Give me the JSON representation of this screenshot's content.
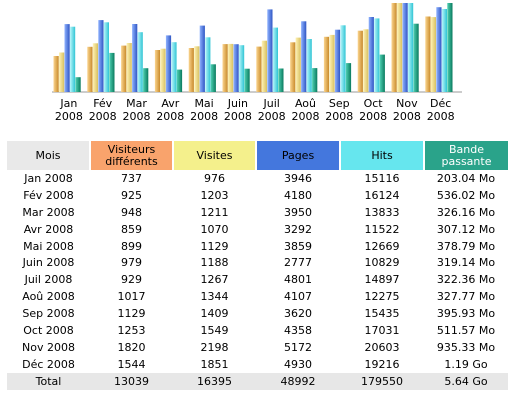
{
  "chart_data": {
    "type": "bar",
    "categories": [
      "Jan 2008",
      "Fév 2008",
      "Mar 2008",
      "Avr 2008",
      "Mai 2008",
      "Juin 2008",
      "Juil 2008",
      "Aoû 2008",
      "Sep 2008",
      "Oct 2008",
      "Nov 2008",
      "Déc 2008"
    ],
    "category_lines": [
      [
        "Jan",
        "2008"
      ],
      [
        "Fév",
        "2008"
      ],
      [
        "Mar",
        "2008"
      ],
      [
        "Avr",
        "2008"
      ],
      [
        "Mai",
        "2008"
      ],
      [
        "Juin",
        "2008"
      ],
      [
        "Juil",
        "2008"
      ],
      [
        "Aoû",
        "2008"
      ],
      [
        "Sep",
        "2008"
      ],
      [
        "Oct",
        "2008"
      ],
      [
        "Nov",
        "2008"
      ],
      [
        "Déc",
        "2008"
      ]
    ],
    "series": [
      {
        "name": "Visiteurs différents",
        "values": [
          737,
          925,
          948,
          859,
          899,
          979,
          929,
          1017,
          1129,
          1253,
          1820,
          1544
        ],
        "colors": [
          "#fbd58f",
          "#c88a2a"
        ]
      },
      {
        "name": "Visites",
        "values": [
          976,
          1203,
          1211,
          1070,
          1129,
          1188,
          1267,
          1344,
          1409,
          1549,
          2198,
          1851
        ],
        "colors": [
          "#fff3b5",
          "#d8c060"
        ]
      },
      {
        "name": "Pages",
        "values": [
          3946,
          4180,
          3950,
          3292,
          3859,
          2777,
          4801,
          4107,
          3620,
          4358,
          5172,
          4930
        ],
        "colors": [
          "#8fb2ff",
          "#2f56c4"
        ]
      },
      {
        "name": "Hits",
        "values": [
          15116,
          16124,
          13833,
          11522,
          12669,
          10829,
          14897,
          12275,
          15435,
          17031,
          20603,
          19216
        ],
        "colors": [
          "#b9f7fb",
          "#2fc4d4"
        ]
      },
      {
        "name": "Bande passante",
        "values": [
          203.04,
          536.02,
          326.16,
          307.12,
          378.79,
          319.14,
          322.36,
          327.77,
          395.93,
          511.57,
          935.33,
          1218.56
        ],
        "colors": [
          "#4fd1b3",
          "#0a7a5e"
        ]
      }
    ]
  },
  "table": {
    "headers": {
      "month": "Mois",
      "visitors_l1": "Visiteurs",
      "visitors_l2": "différents",
      "visits": "Visites",
      "pages": "Pages",
      "hits": "Hits",
      "bandwidth_l1": "Bande",
      "bandwidth_l2": "passante"
    },
    "header_colors": {
      "month": "#e9e9e9",
      "visitors": "#f9a36c",
      "visits": "#f4f08c",
      "pages": "#4477dd",
      "hits": "#66e6ee",
      "bandwidth": "#2aa38a"
    },
    "rows": [
      {
        "month": "Jan 2008",
        "visitors": "737",
        "visits": "976",
        "pages": "3946",
        "hits": "15116",
        "bandwidth": "203.04 Mo"
      },
      {
        "month": "Fév 2008",
        "visitors": "925",
        "visits": "1203",
        "pages": "4180",
        "hits": "16124",
        "bandwidth": "536.02 Mo"
      },
      {
        "month": "Mar 2008",
        "visitors": "948",
        "visits": "1211",
        "pages": "3950",
        "hits": "13833",
        "bandwidth": "326.16 Mo"
      },
      {
        "month": "Avr 2008",
        "visitors": "859",
        "visits": "1070",
        "pages": "3292",
        "hits": "11522",
        "bandwidth": "307.12 Mo"
      },
      {
        "month": "Mai 2008",
        "visitors": "899",
        "visits": "1129",
        "pages": "3859",
        "hits": "12669",
        "bandwidth": "378.79 Mo"
      },
      {
        "month": "Juin 2008",
        "visitors": "979",
        "visits": "1188",
        "pages": "2777",
        "hits": "10829",
        "bandwidth": "319.14 Mo"
      },
      {
        "month": "Juil 2008",
        "visitors": "929",
        "visits": "1267",
        "pages": "4801",
        "hits": "14897",
        "bandwidth": "322.36 Mo"
      },
      {
        "month": "Aoû 2008",
        "visitors": "1017",
        "visits": "1344",
        "pages": "4107",
        "hits": "12275",
        "bandwidth": "327.77 Mo"
      },
      {
        "month": "Sep 2008",
        "visitors": "1129",
        "visits": "1409",
        "pages": "3620",
        "hits": "15435",
        "bandwidth": "395.93 Mo"
      },
      {
        "month": "Oct 2008",
        "visitors": "1253",
        "visits": "1549",
        "pages": "4358",
        "hits": "17031",
        "bandwidth": "511.57 Mo"
      },
      {
        "month": "Nov 2008",
        "visitors": "1820",
        "visits": "2198",
        "pages": "5172",
        "hits": "20603",
        "bandwidth": "935.33 Mo"
      },
      {
        "month": "Déc 2008",
        "visitors": "1544",
        "visits": "1851",
        "pages": "4930",
        "hits": "19216",
        "bandwidth": "1.19 Go"
      }
    ],
    "total": {
      "month": "Total",
      "visitors": "13039",
      "visits": "16395",
      "pages": "48992",
      "hits": "179550",
      "bandwidth": "5.64 Go"
    }
  }
}
